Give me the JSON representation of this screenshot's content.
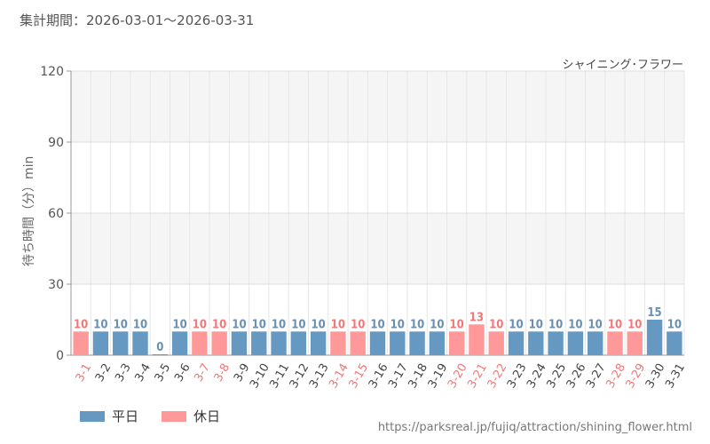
{
  "header": {
    "period_label": "集計期間：2026-03-01～2026-03-31",
    "attraction_name": "シャイニング･フラワー"
  },
  "footer": {
    "source_url": "https://parksreal.jp/fujiq/attraction/shining_flower.html"
  },
  "colors": {
    "weekday": "#6699c2",
    "holiday": "#ff9999",
    "holiday_text": "#f07878",
    "weekday_text": "#6a8fb0",
    "grid": "#e6e6e6",
    "band": "#f5f5f5"
  },
  "chart_data": {
    "type": "bar",
    "ylabel": "待ち時間（分）min",
    "ylim": [
      0,
      120
    ],
    "yticks": [
      0,
      30,
      60,
      90,
      120
    ],
    "grid": true,
    "legend_position": "bottom-left",
    "categories": [
      "3-1",
      "3-2",
      "3-3",
      "3-4",
      "3-5",
      "3-6",
      "3-7",
      "3-8",
      "3-9",
      "3-10",
      "3-11",
      "3-12",
      "3-13",
      "3-14",
      "3-15",
      "3-16",
      "3-17",
      "3-18",
      "3-19",
      "3-20",
      "3-21",
      "3-22",
      "3-23",
      "3-24",
      "3-25",
      "3-26",
      "3-27",
      "3-28",
      "3-29",
      "3-30",
      "3-31"
    ],
    "values": [
      10,
      10,
      10,
      10,
      0,
      10,
      10,
      10,
      10,
      10,
      10,
      10,
      10,
      10,
      10,
      10,
      10,
      10,
      10,
      10,
      13,
      10,
      10,
      10,
      10,
      10,
      10,
      10,
      10,
      15,
      10
    ],
    "day_type": [
      "holiday",
      "weekday",
      "weekday",
      "weekday",
      "weekday",
      "weekday",
      "holiday",
      "holiday",
      "weekday",
      "weekday",
      "weekday",
      "weekday",
      "weekday",
      "holiday",
      "holiday",
      "weekday",
      "weekday",
      "weekday",
      "weekday",
      "holiday",
      "holiday",
      "holiday",
      "weekday",
      "weekday",
      "weekday",
      "weekday",
      "weekday",
      "holiday",
      "holiday",
      "weekday",
      "weekday"
    ],
    "series": [
      {
        "name": "平日",
        "color": "#6699c2"
      },
      {
        "name": "休日",
        "color": "#ff9999"
      }
    ]
  }
}
